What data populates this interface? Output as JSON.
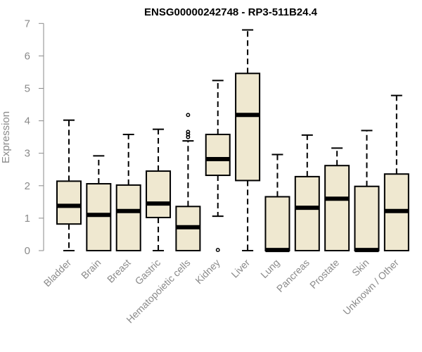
{
  "chart_data": {
    "type": "boxplot",
    "title": "ENSG00000242748 - RP3-511B24.4",
    "ylabel": "Expression",
    "xlabel": "",
    "ylim": [
      0,
      7
    ],
    "yticks": [
      0,
      1,
      2,
      3,
      4,
      5,
      6,
      7
    ],
    "grid": false,
    "legend": "none",
    "box_fill": "#efe8d0",
    "categories": [
      "Bladder",
      "Brain",
      "Breast",
      "Gastric",
      "Hematopoietic cells",
      "Kidney",
      "Liver",
      "Lung",
      "Pancreas",
      "Prostate",
      "Skin",
      "Unknown / Other"
    ],
    "boxes": [
      {
        "label": "Bladder",
        "min": 0,
        "q1": 0.82,
        "median": 1.38,
        "q3": 2.14,
        "max": 4.02,
        "outliers": []
      },
      {
        "label": "Brain",
        "min": 0,
        "q1": 0,
        "median": 1.1,
        "q3": 2.06,
        "max": 2.92,
        "outliers": []
      },
      {
        "label": "Breast",
        "min": 0,
        "q1": 0,
        "median": 1.22,
        "q3": 2.02,
        "max": 3.58,
        "outliers": []
      },
      {
        "label": "Gastric",
        "min": 0,
        "q1": 1.02,
        "median": 1.45,
        "q3": 2.45,
        "max": 3.74,
        "outliers": []
      },
      {
        "label": "Hematopoietic cells",
        "min": 0,
        "q1": 0,
        "median": 0.72,
        "q3": 1.36,
        "max": 3.38,
        "outliers": [
          3.5,
          3.58,
          3.66,
          4.18
        ]
      },
      {
        "label": "Kidney",
        "min": 1.06,
        "q1": 2.32,
        "median": 2.82,
        "q3": 3.58,
        "max": 5.24,
        "outliers": [
          0.02
        ]
      },
      {
        "label": "Liver",
        "min": 0,
        "q1": 2.16,
        "median": 4.18,
        "q3": 5.46,
        "max": 6.8,
        "outliers": []
      },
      {
        "label": "Lung",
        "min": 0,
        "q1": 0,
        "median": 0.02,
        "q3": 1.66,
        "max": 2.96,
        "outliers": []
      },
      {
        "label": "Pancreas",
        "min": 0,
        "q1": 0,
        "median": 1.32,
        "q3": 2.28,
        "max": 3.56,
        "outliers": []
      },
      {
        "label": "Prostate",
        "min": 0,
        "q1": 0,
        "median": 1.6,
        "q3": 2.62,
        "max": 3.16,
        "outliers": []
      },
      {
        "label": "Skin",
        "min": 0,
        "q1": 0,
        "median": 0.02,
        "q3": 1.98,
        "max": 3.7,
        "outliers": []
      },
      {
        "label": "Unknown / Other",
        "min": 0,
        "q1": 0,
        "median": 1.22,
        "q3": 2.36,
        "max": 4.78,
        "outliers": []
      }
    ]
  }
}
